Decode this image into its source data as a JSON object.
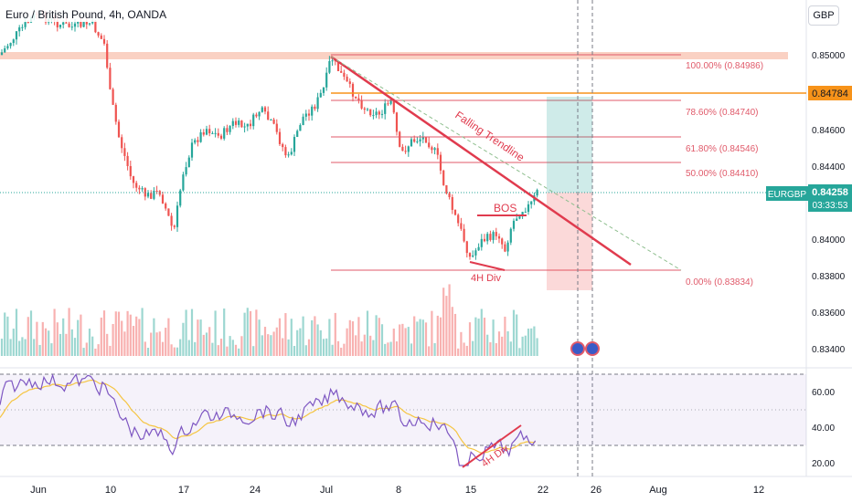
{
  "header": {
    "title": "Euro / British Pound, 4h, OANDA",
    "currency_button": "GBP"
  },
  "price_axis": {
    "ticks": [
      "0.85000",
      "0.84800",
      "0.84600",
      "0.84400",
      "0.84200",
      "0.84000",
      "0.83800",
      "0.83600",
      "0.83400"
    ],
    "level_tag": "0.84784",
    "symbol_tag": "EURGBP",
    "price_tag": "0.84258",
    "countdown": "03:33:53"
  },
  "fib_labels": [
    "100.00% (0.84986)",
    "78.60% (0.84740)",
    "61.80% (0.84546)",
    "50.00% (0.84410)",
    "0.00% (0.83834)"
  ],
  "annotations": {
    "trendline": "Falling Trendline",
    "bos": "BOS",
    "div_price": "4H Div",
    "div_rsi": "4H Div"
  },
  "rsi_axis": {
    "ticks": [
      "60.00",
      "40.00",
      "20.00"
    ]
  },
  "time_axis": {
    "ticks": [
      "Jun",
      "10",
      "17",
      "24",
      "Jul",
      "8",
      "15",
      "22",
      "26",
      "Aug",
      "12"
    ]
  },
  "colors": {
    "up": "#26a69a",
    "down": "#ef5350",
    "fib": "#e05a6a",
    "orange_level": "#f7931a",
    "trendline": "#e03b4e",
    "rsi": "#7e57c2",
    "rsi_ma": "#f5c542"
  }
}
